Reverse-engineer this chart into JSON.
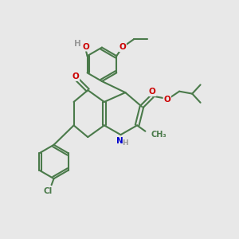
{
  "bg_color": "#e8e8e8",
  "bond_color": "#4a7a4a",
  "bond_width": 1.5,
  "atom_colors": {
    "O": "#cc0000",
    "N": "#0000cc",
    "Cl": "#4a7a4a",
    "H": "#888888",
    "C": "#4a7a4a"
  },
  "font_size": 7.5,
  "fig_size": [
    3.0,
    3.0
  ],
  "dpi": 100,
  "xlim": [
    0,
    10
  ],
  "ylim": [
    0,
    10
  ]
}
